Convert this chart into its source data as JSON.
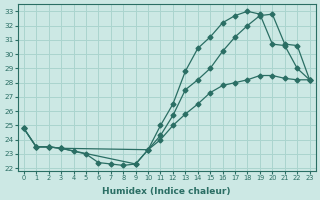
{
  "xlabel": "Humidex (Indice chaleur)",
  "bg_color": "#cce8e4",
  "grid_color": "#aad4ce",
  "line_color": "#2a6e64",
  "xlim": [
    -0.5,
    23.5
  ],
  "ylim": [
    21.8,
    33.5
  ],
  "xticks": [
    0,
    1,
    2,
    3,
    4,
    5,
    6,
    7,
    8,
    9,
    10,
    11,
    12,
    13,
    14,
    15,
    16,
    17,
    18,
    19,
    20,
    21,
    22,
    23
  ],
  "yticks": [
    22,
    23,
    24,
    25,
    26,
    27,
    28,
    29,
    30,
    31,
    32,
    33
  ],
  "line1_x": [
    0,
    1,
    2,
    3,
    4,
    5,
    6,
    7,
    8,
    9,
    10,
    11,
    12,
    13,
    14,
    15,
    16,
    17,
    18,
    19,
    20,
    21,
    22,
    23
  ],
  "line1_y": [
    24.8,
    23.5,
    23.5,
    23.4,
    23.2,
    23.0,
    22.4,
    22.3,
    22.2,
    22.3,
    23.3,
    24.0,
    25.0,
    25.8,
    26.5,
    27.3,
    27.8,
    28.0,
    28.2,
    28.5,
    28.5,
    28.3,
    28.2,
    28.2
  ],
  "line2_x": [
    0,
    1,
    2,
    3,
    10,
    11,
    12,
    13,
    14,
    15,
    16,
    17,
    18,
    19,
    20,
    21,
    22,
    23
  ],
  "line2_y": [
    24.8,
    23.5,
    23.5,
    23.4,
    23.3,
    25.0,
    26.5,
    28.8,
    30.4,
    31.2,
    32.2,
    32.7,
    33.0,
    32.8,
    30.7,
    30.6,
    29.0,
    28.2
  ],
  "line3_x": [
    0,
    1,
    2,
    3,
    9,
    10,
    11,
    12,
    13,
    14,
    15,
    16,
    17,
    18,
    19,
    20,
    21,
    22,
    23
  ],
  "line3_y": [
    24.8,
    23.5,
    23.5,
    23.4,
    22.3,
    23.3,
    24.3,
    25.7,
    27.5,
    28.2,
    29.0,
    30.2,
    31.2,
    32.0,
    32.7,
    32.8,
    30.7,
    30.6,
    28.2
  ]
}
